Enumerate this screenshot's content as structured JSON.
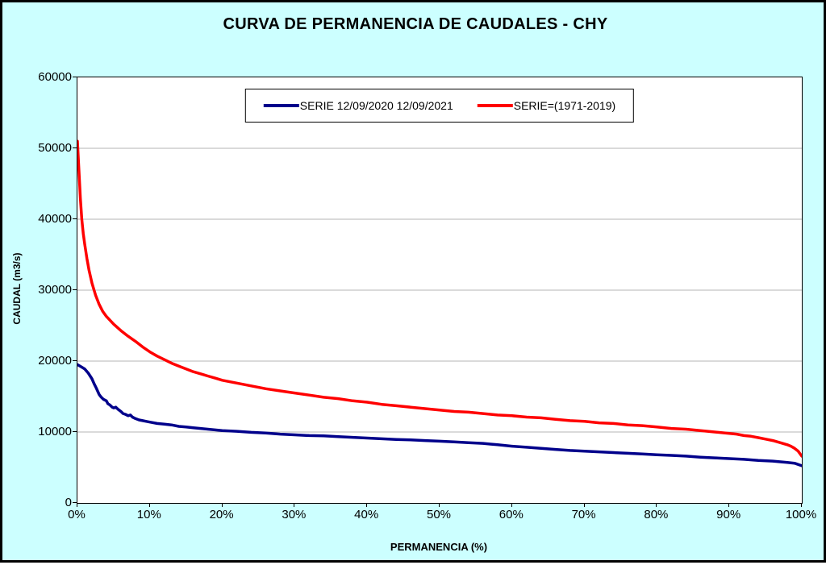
{
  "chart_data": {
    "type": "line",
    "title": "CURVA DE PERMANENCIA DE CAUDALES - CHY",
    "xlabel": "PERMANENCIA (%)",
    "ylabel": "CAUDAL (m3/s)",
    "xlim": [
      0,
      100
    ],
    "ylim": [
      0,
      60000
    ],
    "grid": "horizontal",
    "legend_position": "top-center",
    "y_ticks": [
      {
        "value": 0,
        "label": "0"
      },
      {
        "value": 10000,
        "label": "10000"
      },
      {
        "value": 20000,
        "label": "20000"
      },
      {
        "value": 30000,
        "label": "30000"
      },
      {
        "value": 40000,
        "label": "40000"
      },
      {
        "value": 50000,
        "label": "50000"
      },
      {
        "value": 60000,
        "label": "60000"
      }
    ],
    "x_ticks": [
      {
        "value": 0,
        "label": "0%"
      },
      {
        "value": 10,
        "label": "10%"
      },
      {
        "value": 20,
        "label": "20%"
      },
      {
        "value": 30,
        "label": "30%"
      },
      {
        "value": 40,
        "label": "40%"
      },
      {
        "value": 50,
        "label": "50%"
      },
      {
        "value": 60,
        "label": "60%"
      },
      {
        "value": 70,
        "label": "70%"
      },
      {
        "value": 80,
        "label": "80%"
      },
      {
        "value": 90,
        "label": "90%"
      },
      {
        "value": 100,
        "label": "100%"
      }
    ],
    "series": [
      {
        "name": "SERIE 12/09/2020 12/09/2021",
        "color": "#00008B",
        "points": [
          [
            0,
            19500
          ],
          [
            0.5,
            19200
          ],
          [
            1,
            18900
          ],
          [
            1.5,
            18300
          ],
          [
            2,
            17500
          ],
          [
            2.3,
            16800
          ],
          [
            2.6,
            16200
          ],
          [
            3,
            15300
          ],
          [
            3.3,
            14900
          ],
          [
            3.6,
            14600
          ],
          [
            4,
            14400
          ],
          [
            4.2,
            14000
          ],
          [
            4.5,
            13800
          ],
          [
            4.8,
            13500
          ],
          [
            5,
            13400
          ],
          [
            5.3,
            13500
          ],
          [
            5.6,
            13200
          ],
          [
            6,
            12900
          ],
          [
            6.3,
            12600
          ],
          [
            6.6,
            12500
          ],
          [
            7,
            12300
          ],
          [
            7.3,
            12400
          ],
          [
            7.6,
            12100
          ],
          [
            8,
            11900
          ],
          [
            8.5,
            11700
          ],
          [
            9,
            11600
          ],
          [
            9.5,
            11500
          ],
          [
            10,
            11400
          ],
          [
            11,
            11200
          ],
          [
            12,
            11100
          ],
          [
            13,
            11000
          ],
          [
            14,
            10800
          ],
          [
            15,
            10700
          ],
          [
            16,
            10600
          ],
          [
            17,
            10500
          ],
          [
            18,
            10400
          ],
          [
            19,
            10300
          ],
          [
            20,
            10200
          ],
          [
            22,
            10100
          ],
          [
            24,
            9950
          ],
          [
            26,
            9850
          ],
          [
            28,
            9700
          ],
          [
            30,
            9600
          ],
          [
            32,
            9500
          ],
          [
            34,
            9450
          ],
          [
            36,
            9350
          ],
          [
            38,
            9250
          ],
          [
            40,
            9150
          ],
          [
            42,
            9050
          ],
          [
            44,
            8950
          ],
          [
            46,
            8900
          ],
          [
            48,
            8800
          ],
          [
            50,
            8700
          ],
          [
            52,
            8600
          ],
          [
            54,
            8500
          ],
          [
            56,
            8400
          ],
          [
            57,
            8300
          ],
          [
            58,
            8200
          ],
          [
            60,
            8000
          ],
          [
            62,
            7850
          ],
          [
            64,
            7700
          ],
          [
            66,
            7550
          ],
          [
            68,
            7400
          ],
          [
            70,
            7300
          ],
          [
            72,
            7200
          ],
          [
            74,
            7100
          ],
          [
            76,
            7000
          ],
          [
            78,
            6900
          ],
          [
            80,
            6800
          ],
          [
            82,
            6700
          ],
          [
            84,
            6600
          ],
          [
            86,
            6450
          ],
          [
            88,
            6350
          ],
          [
            90,
            6250
          ],
          [
            92,
            6150
          ],
          [
            94,
            6000
          ],
          [
            96,
            5900
          ],
          [
            98,
            5700
          ],
          [
            99,
            5600
          ],
          [
            100,
            5250
          ]
        ]
      },
      {
        "name": "SERIE=(1971-2019)",
        "color": "#FF0000",
        "points": [
          [
            0,
            51000
          ],
          [
            0.2,
            47000
          ],
          [
            0.4,
            43000
          ],
          [
            0.6,
            40000
          ],
          [
            0.8,
            38000
          ],
          [
            1,
            36500
          ],
          [
            1.3,
            34500
          ],
          [
            1.6,
            32800
          ],
          [
            2,
            31000
          ],
          [
            2.5,
            29300
          ],
          [
            3,
            28000
          ],
          [
            3.5,
            27000
          ],
          [
            4,
            26300
          ],
          [
            5,
            25200
          ],
          [
            6,
            24300
          ],
          [
            7,
            23500
          ],
          [
            8,
            22800
          ],
          [
            9,
            22000
          ],
          [
            10,
            21300
          ],
          [
            11,
            20700
          ],
          [
            12,
            20200
          ],
          [
            13,
            19700
          ],
          [
            14,
            19300
          ],
          [
            15,
            18900
          ],
          [
            16,
            18500
          ],
          [
            17,
            18200
          ],
          [
            18,
            17900
          ],
          [
            19,
            17600
          ],
          [
            20,
            17300
          ],
          [
            22,
            16900
          ],
          [
            24,
            16500
          ],
          [
            26,
            16100
          ],
          [
            28,
            15800
          ],
          [
            30,
            15500
          ],
          [
            32,
            15200
          ],
          [
            34,
            14900
          ],
          [
            36,
            14700
          ],
          [
            38,
            14400
          ],
          [
            40,
            14200
          ],
          [
            42,
            13900
          ],
          [
            44,
            13700
          ],
          [
            46,
            13500
          ],
          [
            48,
            13300
          ],
          [
            50,
            13100
          ],
          [
            52,
            12900
          ],
          [
            54,
            12800
          ],
          [
            56,
            12600
          ],
          [
            58,
            12400
          ],
          [
            60,
            12300
          ],
          [
            62,
            12100
          ],
          [
            64,
            12000
          ],
          [
            66,
            11800
          ],
          [
            68,
            11600
          ],
          [
            70,
            11500
          ],
          [
            72,
            11300
          ],
          [
            74,
            11200
          ],
          [
            76,
            11000
          ],
          [
            78,
            10900
          ],
          [
            80,
            10700
          ],
          [
            82,
            10500
          ],
          [
            84,
            10400
          ],
          [
            86,
            10200
          ],
          [
            88,
            10000
          ],
          [
            90,
            9800
          ],
          [
            91,
            9700
          ],
          [
            92,
            9500
          ],
          [
            93,
            9400
          ],
          [
            94,
            9200
          ],
          [
            95,
            9000
          ],
          [
            96,
            8800
          ],
          [
            97,
            8500
          ],
          [
            98,
            8200
          ],
          [
            98.5,
            8000
          ],
          [
            99,
            7700
          ],
          [
            99.5,
            7300
          ],
          [
            100,
            6600
          ]
        ]
      }
    ]
  }
}
